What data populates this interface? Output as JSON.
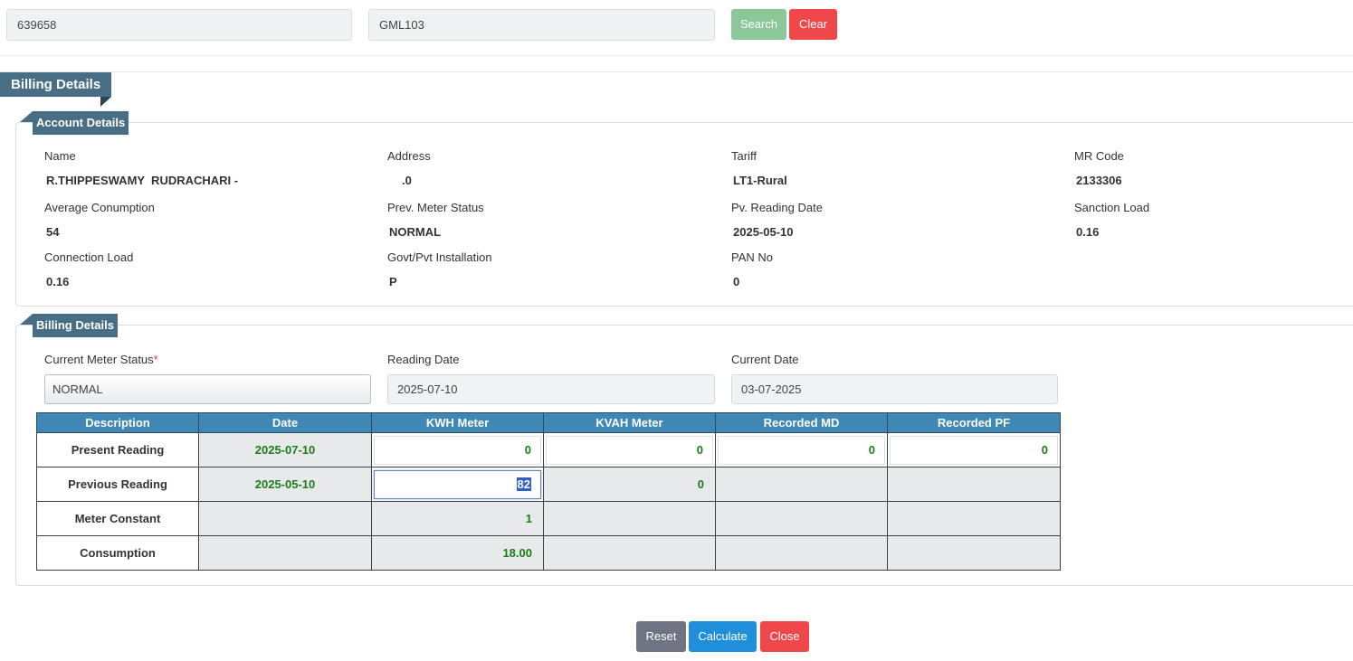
{
  "search": {
    "field1_value": "639658",
    "field2_value": "GML103",
    "search_label": "Search",
    "clear_label": "Clear"
  },
  "section_title": "Billing Details",
  "account": {
    "title": "Account Details",
    "name_label": "Name",
    "name_value": "R.THIPPESWAMY  RUDRACHARI -",
    "address_label": "Address",
    "address_value": ".0",
    "tariff_label": "Tariff",
    "tariff_value": "LT1-Rural",
    "mrcode_label": "MR Code",
    "mrcode_value": "2133306",
    "avg_label": "Average Conumption",
    "avg_value": "54",
    "prev_status_label": "Prev. Meter Status",
    "prev_status_value": "NORMAL",
    "pv_date_label": "Pv. Reading Date",
    "pv_date_value": "2025-05-10",
    "sanction_label": "Sanction Load",
    "sanction_value": "0.16",
    "conn_label": "Connection Load",
    "conn_value": "0.16",
    "govt_label": "Govt/Pvt Installation",
    "govt_value": "P",
    "pan_label": "PAN No",
    "pan_value": "0"
  },
  "billing": {
    "title": "Billing Details",
    "meter_status_label": "Current Meter Status",
    "required_mark": "*",
    "meter_status_value": "NORMAL",
    "reading_date_label": "Reading Date",
    "reading_date_value": "2025-07-10",
    "current_date_label": "Current Date",
    "current_date_value": "03-07-2025"
  },
  "table": {
    "headers": [
      "Description",
      "Date",
      "KWH Meter",
      "KVAH Meter",
      "Recorded MD",
      "Recorded PF"
    ],
    "rows": [
      {
        "desc": "Present Reading",
        "date": "2025-07-10",
        "kwh": "0",
        "kvah": "0",
        "md": "0",
        "pf": "0"
      },
      {
        "desc": "Previous Reading",
        "date": "2025-05-10",
        "kwh": "82",
        "kvah": "0"
      },
      {
        "desc": "Meter Constant",
        "kwh": "1"
      },
      {
        "desc": "Consumption",
        "kwh": "18.00"
      }
    ]
  },
  "actions": {
    "reset_label": "Reset",
    "calculate_label": "Calculate",
    "close_label": "Close"
  },
  "colors": {
    "search_btn": "#8cc79a",
    "clear_btn": "#f0484a",
    "reset_btn": "#6f7384",
    "calculate_btn": "#1f8fdc",
    "close_btn": "#f0484a",
    "ribbon": "#476e84",
    "table_header": "#3f88b5",
    "value_green": "#1a7d1a"
  }
}
